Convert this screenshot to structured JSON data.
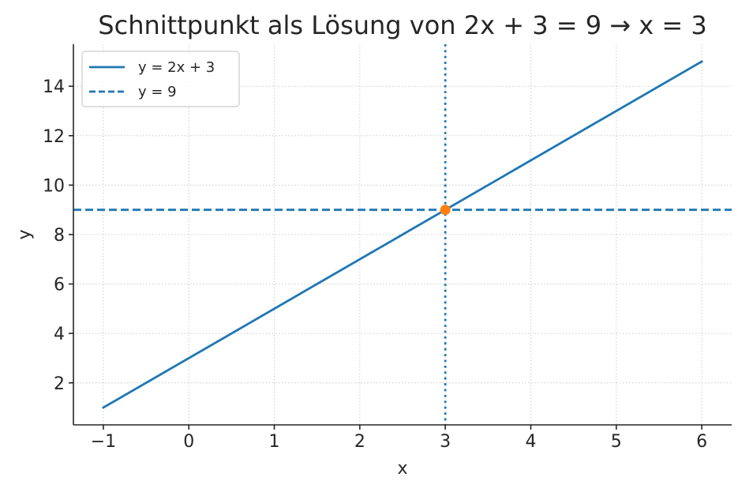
{
  "chart_data": {
    "type": "line",
    "title": "Schnittpunkt als Lösung von 2x + 3 = 9 → x = 3",
    "xlabel": "x",
    "ylabel": "y",
    "xlim": [
      -1.35,
      6.35
    ],
    "ylim": [
      0.3,
      15.7
    ],
    "xticks": [
      -1,
      0,
      1,
      2,
      3,
      4,
      5,
      6
    ],
    "xtick_labels": [
      "−1",
      "0",
      "1",
      "2",
      "3",
      "4",
      "5",
      "6"
    ],
    "yticks": [
      2,
      4,
      6,
      8,
      10,
      12,
      14
    ],
    "ytick_labels": [
      "2",
      "4",
      "6",
      "8",
      "10",
      "12",
      "14"
    ],
    "grid": true,
    "legend_position": "top-left",
    "series": [
      {
        "name": "y = 2x + 3",
        "style": "solid",
        "color": "#1f77b4",
        "x": [
          -1,
          6
        ],
        "y": [
          1,
          15
        ]
      },
      {
        "name": "y = 9",
        "style": "dashed",
        "color": "#1f77b4",
        "horizontal_y": 9
      }
    ],
    "vertical_line": {
      "x": 3,
      "style": "dotted",
      "color": "#1f77b4"
    },
    "intersection": {
      "x": 3,
      "y": 9,
      "color": "#ff7f0e"
    }
  }
}
